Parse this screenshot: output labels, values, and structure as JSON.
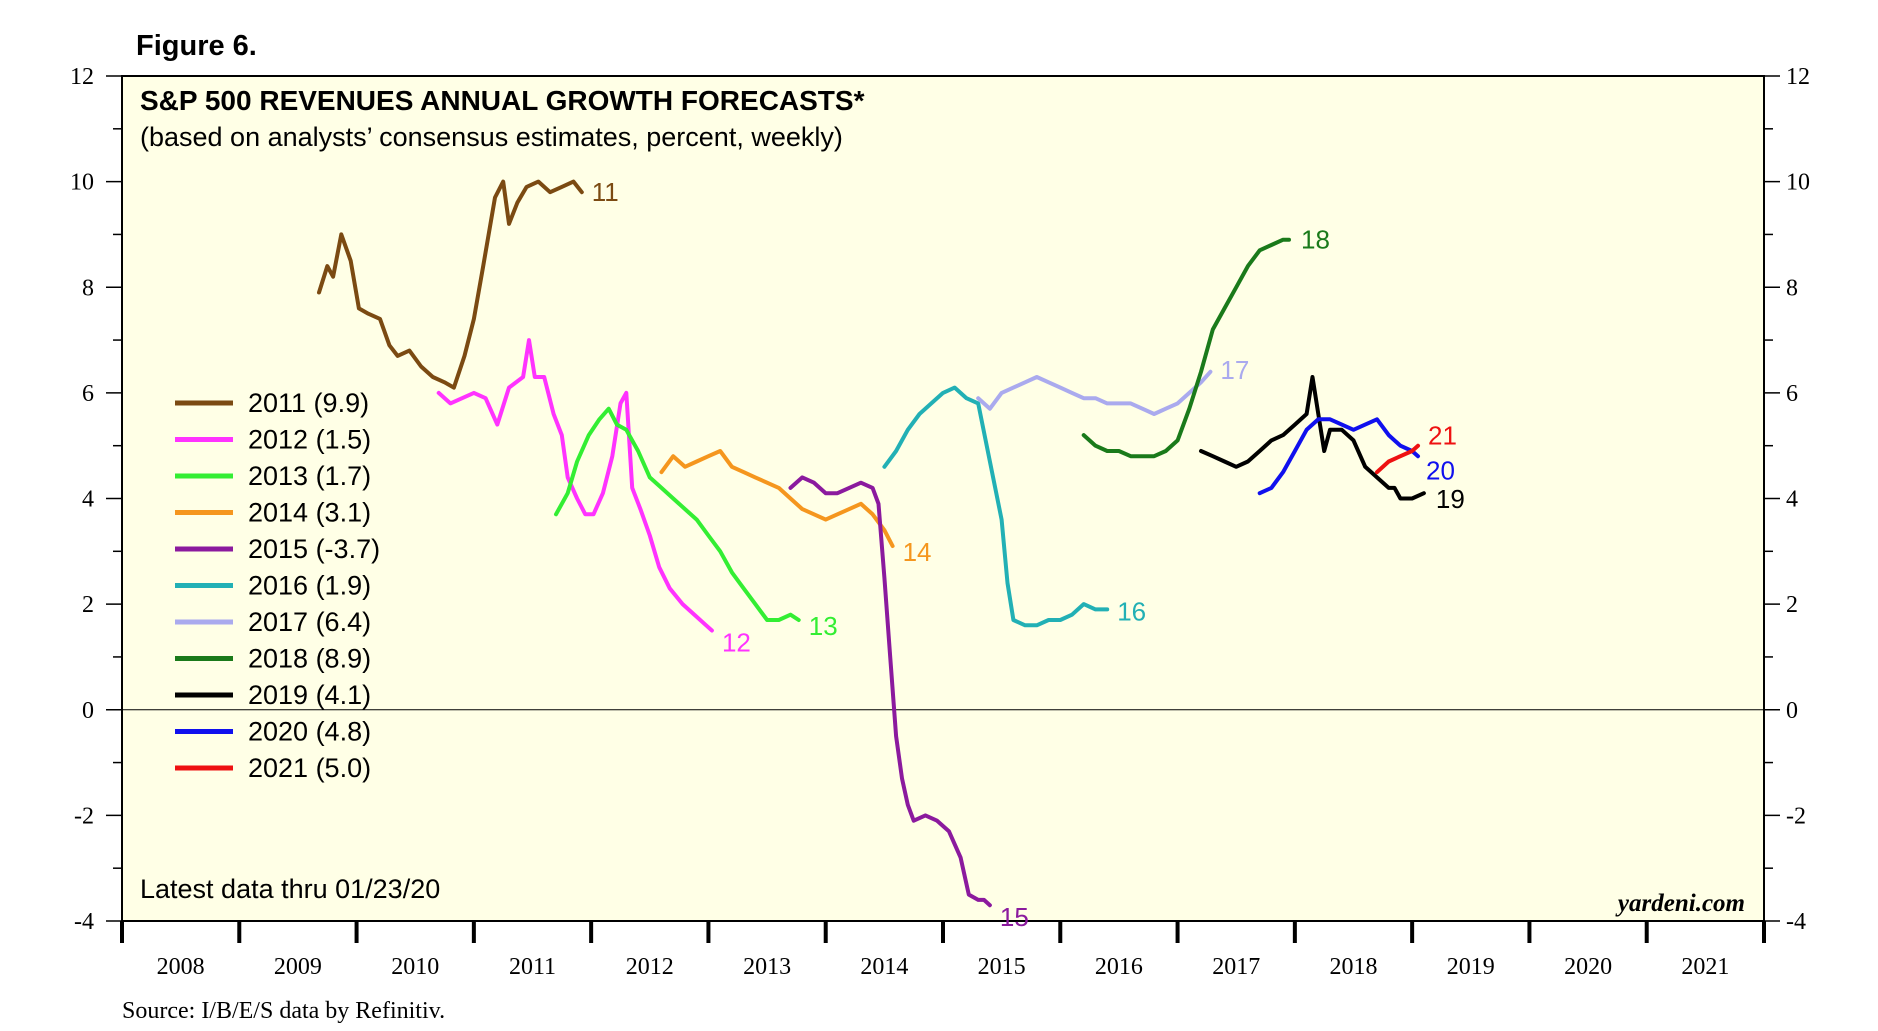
{
  "figure_label": "Figure 6.",
  "source": "Source: I/B/E/S data by Refinitiv.",
  "note": "Latest data thru 01/23/20",
  "watermark": "yardeni.com",
  "chart_data": {
    "type": "line",
    "title": "S&P 500 REVENUES ANNUAL GROWTH FORECASTS*",
    "subtitle": "(based on analysts’ consensus estimates, percent, weekly)",
    "xlabel": "",
    "ylabel": "",
    "ylim": [
      -4,
      12
    ],
    "xlim": [
      2007.5,
      2021.5
    ],
    "x_tick_labels": [
      "2008",
      "2009",
      "2010",
      "2011",
      "2012",
      "2013",
      "2014",
      "2015",
      "2016",
      "2017",
      "2018",
      "2019",
      "2020",
      "2021"
    ],
    "y_tick_labels": [
      "12",
      "10",
      "8",
      "6",
      "4",
      "2",
      "0",
      "-2",
      "-4"
    ],
    "y_ticks": [
      12,
      10,
      8,
      6,
      4,
      2,
      0,
      -2,
      -4
    ],
    "zero_line": true,
    "grid": false,
    "legend_position": "left",
    "series": [
      {
        "name": "2011 (9.9)",
        "end_label": "11",
        "color": "#7b4a12",
        "points": [
          [
            2009.18,
            7.9
          ],
          [
            2009.25,
            8.4
          ],
          [
            2009.3,
            8.2
          ],
          [
            2009.37,
            9.0
          ],
          [
            2009.45,
            8.5
          ],
          [
            2009.52,
            7.6
          ],
          [
            2009.6,
            7.5
          ],
          [
            2009.7,
            7.4
          ],
          [
            2009.78,
            6.9
          ],
          [
            2009.85,
            6.7
          ],
          [
            2009.95,
            6.8
          ],
          [
            2010.05,
            6.5
          ],
          [
            2010.15,
            6.3
          ],
          [
            2010.25,
            6.2
          ],
          [
            2010.33,
            6.1
          ],
          [
            2010.42,
            6.7
          ],
          [
            2010.5,
            7.4
          ],
          [
            2010.58,
            8.4
          ],
          [
            2010.68,
            9.7
          ],
          [
            2010.75,
            10.0
          ],
          [
            2010.8,
            9.2
          ],
          [
            2010.87,
            9.6
          ],
          [
            2010.95,
            9.9
          ],
          [
            2011.05,
            10.0
          ],
          [
            2011.15,
            9.8
          ],
          [
            2011.25,
            9.9
          ],
          [
            2011.35,
            10.0
          ],
          [
            2011.42,
            9.8
          ]
        ]
      },
      {
        "name": "2012 (1.5)",
        "end_label": "12",
        "color": "#ff33ff",
        "points": [
          [
            2010.2,
            6.0
          ],
          [
            2010.3,
            5.8
          ],
          [
            2010.4,
            5.9
          ],
          [
            2010.5,
            6.0
          ],
          [
            2010.6,
            5.9
          ],
          [
            2010.7,
            5.4
          ],
          [
            2010.8,
            6.1
          ],
          [
            2010.92,
            6.3
          ],
          [
            2010.97,
            7.0
          ],
          [
            2011.02,
            6.3
          ],
          [
            2011.1,
            6.3
          ],
          [
            2011.18,
            5.6
          ],
          [
            2011.25,
            5.2
          ],
          [
            2011.3,
            4.4
          ],
          [
            2011.38,
            4.0
          ],
          [
            2011.45,
            3.7
          ],
          [
            2011.52,
            3.7
          ],
          [
            2011.6,
            4.1
          ],
          [
            2011.68,
            4.8
          ],
          [
            2011.75,
            5.8
          ],
          [
            2011.8,
            6.0
          ],
          [
            2011.85,
            4.2
          ],
          [
            2011.92,
            3.8
          ],
          [
            2012.0,
            3.3
          ],
          [
            2012.08,
            2.7
          ],
          [
            2012.17,
            2.3
          ],
          [
            2012.28,
            2.0
          ],
          [
            2012.38,
            1.8
          ],
          [
            2012.48,
            1.6
          ],
          [
            2012.53,
            1.5
          ]
        ]
      },
      {
        "name": "2013 (1.7)",
        "end_label": "13",
        "color": "#33ee33",
        "points": [
          [
            2011.2,
            3.7
          ],
          [
            2011.3,
            4.1
          ],
          [
            2011.38,
            4.7
          ],
          [
            2011.48,
            5.2
          ],
          [
            2011.57,
            5.5
          ],
          [
            2011.65,
            5.7
          ],
          [
            2011.72,
            5.4
          ],
          [
            2011.8,
            5.3
          ],
          [
            2011.9,
            4.9
          ],
          [
            2012.0,
            4.4
          ],
          [
            2012.1,
            4.2
          ],
          [
            2012.2,
            4.0
          ],
          [
            2012.3,
            3.8
          ],
          [
            2012.4,
            3.6
          ],
          [
            2012.5,
            3.3
          ],
          [
            2012.6,
            3.0
          ],
          [
            2012.7,
            2.6
          ],
          [
            2012.8,
            2.3
          ],
          [
            2012.9,
            2.0
          ],
          [
            2013.0,
            1.7
          ],
          [
            2013.1,
            1.7
          ],
          [
            2013.2,
            1.8
          ],
          [
            2013.27,
            1.7
          ]
        ]
      },
      {
        "name": "2014 (3.1)",
        "end_label": "14",
        "color": "#f5961e",
        "points": [
          [
            2012.1,
            4.5
          ],
          [
            2012.2,
            4.8
          ],
          [
            2012.3,
            4.6
          ],
          [
            2012.4,
            4.7
          ],
          [
            2012.5,
            4.8
          ],
          [
            2012.6,
            4.9
          ],
          [
            2012.7,
            4.6
          ],
          [
            2012.8,
            4.5
          ],
          [
            2012.9,
            4.4
          ],
          [
            2013.0,
            4.3
          ],
          [
            2013.1,
            4.2
          ],
          [
            2013.2,
            4.0
          ],
          [
            2013.3,
            3.8
          ],
          [
            2013.4,
            3.7
          ],
          [
            2013.5,
            3.6
          ],
          [
            2013.6,
            3.7
          ],
          [
            2013.7,
            3.8
          ],
          [
            2013.8,
            3.9
          ],
          [
            2013.9,
            3.7
          ],
          [
            2014.0,
            3.4
          ],
          [
            2014.07,
            3.1
          ]
        ]
      },
      {
        "name": "2015 (-3.7)",
        "end_label": "15",
        "color": "#8b1a9e",
        "points": [
          [
            2013.2,
            4.2
          ],
          [
            2013.3,
            4.4
          ],
          [
            2013.4,
            4.3
          ],
          [
            2013.5,
            4.1
          ],
          [
            2013.6,
            4.1
          ],
          [
            2013.7,
            4.2
          ],
          [
            2013.8,
            4.3
          ],
          [
            2013.9,
            4.2
          ],
          [
            2013.95,
            3.9
          ],
          [
            2014.0,
            2.5
          ],
          [
            2014.05,
            1.0
          ],
          [
            2014.1,
            -0.5
          ],
          [
            2014.15,
            -1.3
          ],
          [
            2014.2,
            -1.8
          ],
          [
            2014.25,
            -2.1
          ],
          [
            2014.35,
            -2.0
          ],
          [
            2014.45,
            -2.1
          ],
          [
            2014.55,
            -2.3
          ],
          [
            2014.65,
            -2.8
          ],
          [
            2014.72,
            -3.5
          ],
          [
            2014.8,
            -3.6
          ],
          [
            2014.85,
            -3.6
          ],
          [
            2014.9,
            -3.7
          ]
        ]
      },
      {
        "name": "2016 (1.9)",
        "end_label": "16",
        "color": "#22b0b5",
        "points": [
          [
            2014.0,
            4.6
          ],
          [
            2014.1,
            4.9
          ],
          [
            2014.2,
            5.3
          ],
          [
            2014.3,
            5.6
          ],
          [
            2014.4,
            5.8
          ],
          [
            2014.5,
            6.0
          ],
          [
            2014.6,
            6.1
          ],
          [
            2014.7,
            5.9
          ],
          [
            2014.8,
            5.8
          ],
          [
            2014.9,
            4.7
          ],
          [
            2015.0,
            3.6
          ],
          [
            2015.05,
            2.4
          ],
          [
            2015.1,
            1.7
          ],
          [
            2015.2,
            1.6
          ],
          [
            2015.3,
            1.6
          ],
          [
            2015.4,
            1.7
          ],
          [
            2015.5,
            1.7
          ],
          [
            2015.6,
            1.8
          ],
          [
            2015.7,
            2.0
          ],
          [
            2015.8,
            1.9
          ],
          [
            2015.9,
            1.9
          ]
        ]
      },
      {
        "name": "2017 (6.4)",
        "end_label": "17",
        "color": "#aaaaee",
        "points": [
          [
            2014.8,
            5.9
          ],
          [
            2014.9,
            5.7
          ],
          [
            2015.0,
            6.0
          ],
          [
            2015.1,
            6.1
          ],
          [
            2015.2,
            6.2
          ],
          [
            2015.3,
            6.3
          ],
          [
            2015.4,
            6.2
          ],
          [
            2015.5,
            6.1
          ],
          [
            2015.6,
            6.0
          ],
          [
            2015.7,
            5.9
          ],
          [
            2015.8,
            5.9
          ],
          [
            2015.9,
            5.8
          ],
          [
            2016.0,
            5.8
          ],
          [
            2016.1,
            5.8
          ],
          [
            2016.2,
            5.7
          ],
          [
            2016.3,
            5.6
          ],
          [
            2016.4,
            5.7
          ],
          [
            2016.5,
            5.8
          ],
          [
            2016.6,
            6.0
          ],
          [
            2016.7,
            6.2
          ],
          [
            2016.78,
            6.4
          ]
        ]
      },
      {
        "name": "2018 (8.9)",
        "end_label": "18",
        "color": "#1a7a1a",
        "points": [
          [
            2015.7,
            5.2
          ],
          [
            2015.8,
            5.0
          ],
          [
            2015.9,
            4.9
          ],
          [
            2016.0,
            4.9
          ],
          [
            2016.1,
            4.8
          ],
          [
            2016.2,
            4.8
          ],
          [
            2016.3,
            4.8
          ],
          [
            2016.4,
            4.9
          ],
          [
            2016.5,
            5.1
          ],
          [
            2016.6,
            5.7
          ],
          [
            2016.7,
            6.4
          ],
          [
            2016.8,
            7.2
          ],
          [
            2016.9,
            7.6
          ],
          [
            2017.0,
            8.0
          ],
          [
            2017.1,
            8.4
          ],
          [
            2017.2,
            8.7
          ],
          [
            2017.3,
            8.8
          ],
          [
            2017.4,
            8.9
          ],
          [
            2017.45,
            8.9
          ]
        ]
      },
      {
        "name": "2019 (4.1)",
        "end_label": "19",
        "color": "#000000",
        "points": [
          [
            2016.7,
            4.9
          ],
          [
            2016.8,
            4.8
          ],
          [
            2016.9,
            4.7
          ],
          [
            2017.0,
            4.6
          ],
          [
            2017.1,
            4.7
          ],
          [
            2017.2,
            4.9
          ],
          [
            2017.3,
            5.1
          ],
          [
            2017.4,
            5.2
          ],
          [
            2017.5,
            5.4
          ],
          [
            2017.6,
            5.6
          ],
          [
            2017.65,
            6.3
          ],
          [
            2017.7,
            5.6
          ],
          [
            2017.75,
            4.9
          ],
          [
            2017.8,
            5.3
          ],
          [
            2017.9,
            5.3
          ],
          [
            2018.0,
            5.1
          ],
          [
            2018.1,
            4.6
          ],
          [
            2018.2,
            4.4
          ],
          [
            2018.3,
            4.2
          ],
          [
            2018.35,
            4.2
          ],
          [
            2018.4,
            4.0
          ],
          [
            2018.5,
            4.0
          ],
          [
            2018.6,
            4.1
          ]
        ]
      },
      {
        "name": "2020 (4.8)",
        "end_label": "20",
        "color": "#1010ee",
        "points": [
          [
            2017.2,
            4.1
          ],
          [
            2017.3,
            4.2
          ],
          [
            2017.4,
            4.5
          ],
          [
            2017.5,
            4.9
          ],
          [
            2017.6,
            5.3
          ],
          [
            2017.7,
            5.5
          ],
          [
            2017.8,
            5.5
          ],
          [
            2017.9,
            5.4
          ],
          [
            2018.0,
            5.3
          ],
          [
            2018.1,
            5.4
          ],
          [
            2018.2,
            5.5
          ],
          [
            2018.3,
            5.2
          ],
          [
            2018.4,
            5.0
          ],
          [
            2018.5,
            4.9
          ],
          [
            2018.55,
            4.8
          ]
        ]
      },
      {
        "name": "2021 (5.0)",
        "end_label": "21",
        "color": "#ee1111",
        "points": [
          [
            2018.2,
            4.5
          ],
          [
            2018.3,
            4.7
          ],
          [
            2018.4,
            4.8
          ],
          [
            2018.5,
            4.9
          ],
          [
            2018.55,
            5.0
          ]
        ]
      }
    ]
  }
}
